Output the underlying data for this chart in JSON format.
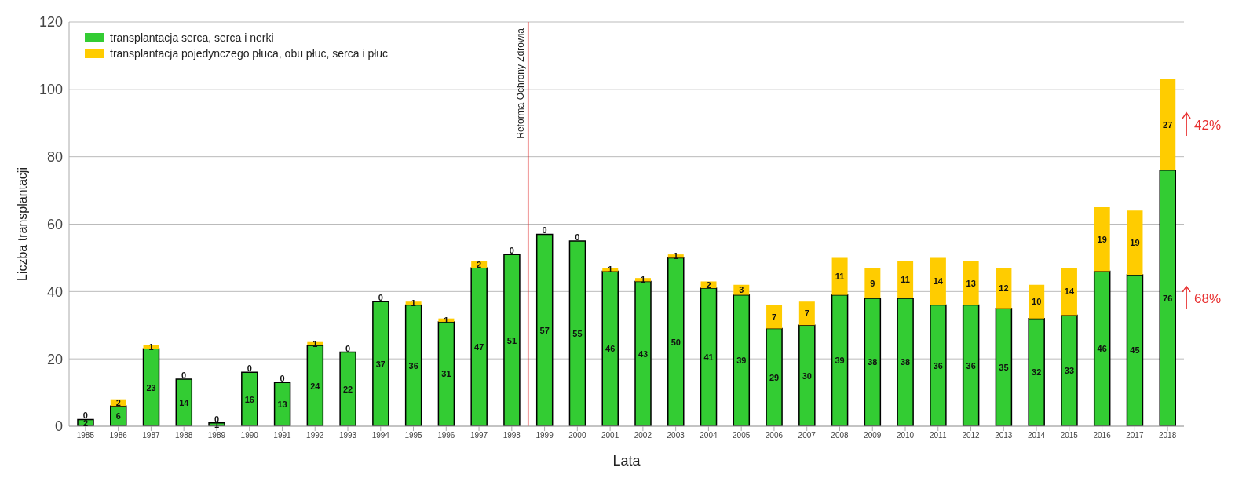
{
  "chart_data": {
    "type": "bar",
    "stacked": true,
    "xlabel": "Lata",
    "ylabel": "Liczba transplantacji",
    "categories": [
      "1985",
      "1986",
      "1987",
      "1988",
      "1989",
      "1990",
      "1991",
      "1992",
      "1993",
      "1994",
      "1995",
      "1996",
      "1997",
      "1998",
      "1999",
      "2000",
      "2001",
      "2002",
      "2003",
      "2004",
      "2005",
      "2006",
      "2007",
      "2008",
      "2009",
      "2010",
      "2011",
      "2012",
      "2013",
      "2014",
      "2015",
      "2016",
      "2017",
      "2018"
    ],
    "series": [
      {
        "name": "transplantacja serca, serca i nerki",
        "color": "#33cc33",
        "values": [
          2,
          6,
          23,
          14,
          1,
          16,
          13,
          24,
          22,
          37,
          36,
          31,
          47,
          51,
          57,
          55,
          46,
          43,
          50,
          41,
          39,
          29,
          30,
          39,
          38,
          38,
          36,
          36,
          35,
          32,
          33,
          46,
          45,
          76
        ]
      },
      {
        "name": "transplantacja pojedynczego płuca, obu płuc, serca i płuc",
        "color": "#ffcc00",
        "values": [
          0,
          2,
          1,
          0,
          0,
          0,
          0,
          1,
          0,
          0,
          1,
          1,
          2,
          0,
          0,
          0,
          1,
          1,
          1,
          2,
          3,
          7,
          7,
          11,
          9,
          11,
          14,
          13,
          12,
          10,
          14,
          19,
          19,
          27
        ]
      }
    ],
    "ylim": [
      0,
      120
    ],
    "yticks": [
      0,
      20,
      40,
      60,
      80,
      100,
      120
    ],
    "grid": "y",
    "legend": "top left",
    "data_labels": true,
    "ref_lines": [
      {
        "axis": "x",
        "value": "1999",
        "label": "Reforma Ochrony Zdrowia",
        "color": "#e03030"
      }
    ],
    "annotations": [
      "42%",
      "68%"
    ]
  }
}
